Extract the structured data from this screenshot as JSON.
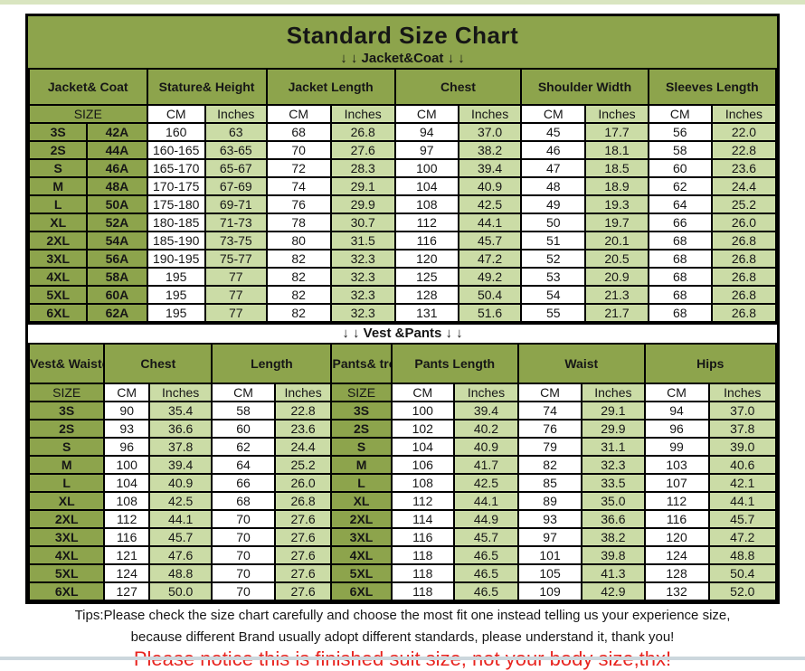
{
  "page": {
    "title": "Standard Size Chart",
    "jacket_band": "↓ ↓  Jacket&Coat ↓ ↓",
    "vest_band": "↓ ↓  Vest &Pants ↓ ↓",
    "tips_line1": "Tips:Please check the size chart carefully and choose the most fit one instead telling us your experience size,",
    "tips_line2": "because different Brand usually adopt different standards, please understand it, thank you!",
    "notice": "Please notice this is finished suit size, not your body size,thx!"
  },
  "colors": {
    "olive_green": "#8da44c",
    "light_green": "#cbdca6",
    "cell_white": "#ffffff",
    "border_black": "#000000",
    "notice_red": "#e8241f",
    "top_strip": "#d9e5c0",
    "bottom_strip": "#ccd7dd"
  },
  "jacket_table": {
    "groups": [
      "Jacket&\nCoat",
      "Stature&\nHeight",
      "Jacket\nLength",
      "Chest",
      "Shoulder\nWidth",
      "Sleeves\nLength"
    ],
    "units": [
      "SIZE",
      "CM",
      "Inches",
      "CM",
      "Inches",
      "CM",
      "Inches",
      "CM",
      "Inches",
      "CM",
      "Inches"
    ],
    "rows": [
      [
        "3S",
        "42A",
        "160",
        "63",
        "68",
        "26.8",
        "94",
        "37.0",
        "45",
        "17.7",
        "56",
        "22.0"
      ],
      [
        "2S",
        "44A",
        "160-165",
        "63-65",
        "70",
        "27.6",
        "97",
        "38.2",
        "46",
        "18.1",
        "58",
        "22.8"
      ],
      [
        "S",
        "46A",
        "165-170",
        "65-67",
        "72",
        "28.3",
        "100",
        "39.4",
        "47",
        "18.5",
        "60",
        "23.6"
      ],
      [
        "M",
        "48A",
        "170-175",
        "67-69",
        "74",
        "29.1",
        "104",
        "40.9",
        "48",
        "18.9",
        "62",
        "24.4"
      ],
      [
        "L",
        "50A",
        "175-180",
        "69-71",
        "76",
        "29.9",
        "108",
        "42.5",
        "49",
        "19.3",
        "64",
        "25.2"
      ],
      [
        "XL",
        "52A",
        "180-185",
        "71-73",
        "78",
        "30.7",
        "112",
        "44.1",
        "50",
        "19.7",
        "66",
        "26.0"
      ],
      [
        "2XL",
        "54A",
        "185-190",
        "73-75",
        "80",
        "31.5",
        "116",
        "45.7",
        "51",
        "20.1",
        "68",
        "26.8"
      ],
      [
        "3XL",
        "56A",
        "190-195",
        "75-77",
        "82",
        "32.3",
        "120",
        "47.2",
        "52",
        "20.5",
        "68",
        "26.8"
      ],
      [
        "4XL",
        "58A",
        "195",
        "77",
        "82",
        "32.3",
        "125",
        "49.2",
        "53",
        "20.9",
        "68",
        "26.8"
      ],
      [
        "5XL",
        "60A",
        "195",
        "77",
        "82",
        "32.3",
        "128",
        "50.4",
        "54",
        "21.3",
        "68",
        "26.8"
      ],
      [
        "6XL",
        "62A",
        "195",
        "77",
        "82",
        "32.3",
        "131",
        "51.6",
        "55",
        "21.7",
        "68",
        "26.8"
      ]
    ]
  },
  "vest_table": {
    "groups": [
      "Vest&\nWaistcoat",
      "Chest",
      "Length",
      "Pants&\ntrousers",
      "Pants\nLength",
      "Waist",
      "Hips"
    ],
    "units": [
      "SIZE",
      "CM",
      "Inches",
      "CM",
      "Inches",
      "SIZE",
      "CM",
      "Inches",
      "CM",
      "Inches",
      "CM",
      "Inches"
    ],
    "rows": [
      [
        "3S",
        "90",
        "35.4",
        "58",
        "22.8",
        "3S",
        "100",
        "39.4",
        "74",
        "29.1",
        "94",
        "37.0"
      ],
      [
        "2S",
        "93",
        "36.6",
        "60",
        "23.6",
        "2S",
        "102",
        "40.2",
        "76",
        "29.9",
        "96",
        "37.8"
      ],
      [
        "S",
        "96",
        "37.8",
        "62",
        "24.4",
        "S",
        "104",
        "40.9",
        "79",
        "31.1",
        "99",
        "39.0"
      ],
      [
        "M",
        "100",
        "39.4",
        "64",
        "25.2",
        "M",
        "106",
        "41.7",
        "82",
        "32.3",
        "103",
        "40.6"
      ],
      [
        "L",
        "104",
        "40.9",
        "66",
        "26.0",
        "L",
        "108",
        "42.5",
        "85",
        "33.5",
        "107",
        "42.1"
      ],
      [
        "XL",
        "108",
        "42.5",
        "68",
        "26.8",
        "XL",
        "112",
        "44.1",
        "89",
        "35.0",
        "112",
        "44.1"
      ],
      [
        "2XL",
        "112",
        "44.1",
        "70",
        "27.6",
        "2XL",
        "114",
        "44.9",
        "93",
        "36.6",
        "116",
        "45.7"
      ],
      [
        "3XL",
        "116",
        "45.7",
        "70",
        "27.6",
        "3XL",
        "116",
        "45.7",
        "97",
        "38.2",
        "120",
        "47.2"
      ],
      [
        "4XL",
        "121",
        "47.6",
        "70",
        "27.6",
        "4XL",
        "118",
        "46.5",
        "101",
        "39.8",
        "124",
        "48.8"
      ],
      [
        "5XL",
        "124",
        "48.8",
        "70",
        "27.6",
        "5XL",
        "118",
        "46.5",
        "105",
        "41.3",
        "128",
        "50.4"
      ],
      [
        "6XL",
        "127",
        "50.0",
        "70",
        "27.6",
        "6XL",
        "118",
        "46.5",
        "109",
        "42.9",
        "132",
        "52.0"
      ]
    ]
  }
}
